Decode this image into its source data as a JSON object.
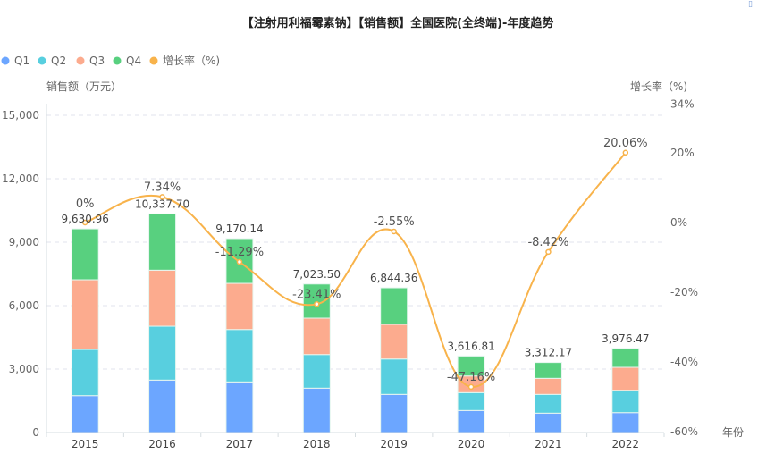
{
  "chart_data": {
    "type": "bar",
    "title": "【注射用利福霉素钠】【销售额】全国医院(全终端)-年度趋势",
    "xlabel": "年份",
    "ylabel": "销售额（万元）",
    "y2label": "增长率（%)",
    "categories": [
      "2015",
      "2016",
      "2017",
      "2018",
      "2019",
      "2020",
      "2021",
      "2022"
    ],
    "series": [
      {
        "name": "Q1",
        "kind": "bar",
        "color": "#6ca6ff",
        "values": [
          1745,
          2480,
          2395,
          2100,
          1804,
          1043,
          917,
          942
        ]
      },
      {
        "name": "Q2",
        "kind": "bar",
        "color": "#58cfdf",
        "values": [
          2184,
          2547,
          2476,
          1588,
          1673,
          845,
          887,
          1056
        ]
      },
      {
        "name": "Q3",
        "kind": "bar",
        "color": "#fcab8e",
        "values": [
          3295,
          2649,
          2184,
          1720,
          1635,
          787,
          760,
          1086
        ]
      },
      {
        "name": "Q4",
        "kind": "bar",
        "color": "#58d07f",
        "values": [
          2407,
          2662,
          2115,
          1615,
          1732,
          942,
          748,
          892
        ]
      },
      {
        "name": "增长率（%)",
        "kind": "line",
        "color": "#f8b34b",
        "values": [
          0,
          7.34,
          -11.29,
          -23.41,
          -2.55,
          -47.16,
          -8.42,
          20.06
        ]
      }
    ],
    "totals": [
      "9,630.96",
      "10,337.70",
      "9,170.14",
      "7,023.50",
      "6,844.36",
      "3,616.81",
      "3,312.17",
      "3,976.47"
    ],
    "growth_labels": [
      "0%",
      "7.34%",
      "-11.29%",
      "-23.41%",
      "-2.55%",
      "-47.16%",
      "-8.42%",
      "20.06%"
    ],
    "ylim": [
      0,
      15000
    ],
    "yticks": [
      "0",
      "3,000",
      "6,000",
      "9,000",
      "12,000",
      "15,000"
    ],
    "ytick_values": [
      0,
      3000,
      6000,
      9000,
      12000,
      15000
    ],
    "y2lim": [
      -60,
      34
    ],
    "y2ticks": [
      "-60%",
      "-40%",
      "-20%",
      "0%",
      "20%",
      "34%"
    ],
    "y2tick_values": [
      -60,
      -40,
      -20,
      0,
      20,
      34
    ],
    "grid": true,
    "legend_position": "top-left"
  }
}
